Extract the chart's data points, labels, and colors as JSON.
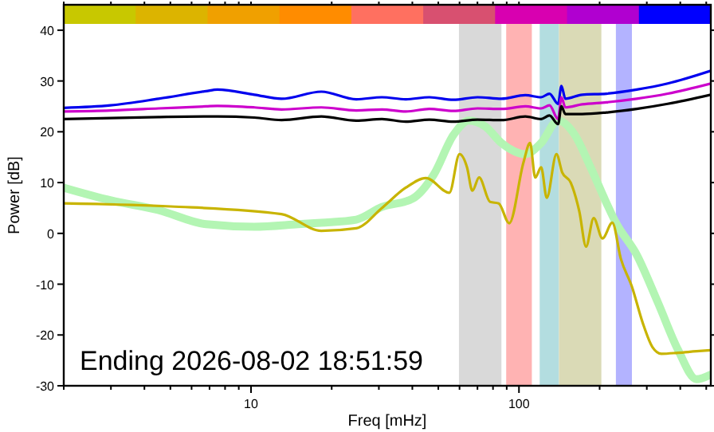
{
  "chart_data": {
    "type": "line",
    "xlabel": "Freq [mHz]",
    "ylabel": "Power [dB]",
    "log": "x",
    "xlim": [
      2,
      520
    ],
    "ylim": [
      -30,
      45
    ],
    "xticks": [
      {
        "value": 2,
        "label": null
      },
      {
        "value": 3,
        "label": null
      },
      {
        "value": 4,
        "label": null
      },
      {
        "value": 5,
        "label": null
      },
      {
        "value": 6,
        "label": null
      },
      {
        "value": 7,
        "label": null
      },
      {
        "value": 8,
        "label": null
      },
      {
        "value": 9,
        "label": null
      },
      10,
      {
        "value": 20,
        "label": null
      },
      {
        "value": 30,
        "label": null
      },
      {
        "value": 40,
        "label": null
      },
      {
        "value": 50,
        "label": null
      },
      {
        "value": 60,
        "label": null
      },
      {
        "value": 70,
        "label": null
      },
      {
        "value": 80,
        "label": null
      },
      {
        "value": 90,
        "label": null
      },
      100,
      {
        "value": 200,
        "label": null
      },
      {
        "value": 300,
        "label": null
      },
      {
        "value": 400,
        "label": null
      },
      {
        "value": 500,
        "label": null
      }
    ],
    "yticks": [
      -30,
      -20,
      -10,
      0,
      10,
      20,
      30,
      40
    ],
    "annotations": [
      "Ending 2026-08-02 18:51:59"
    ],
    "bands": [
      {
        "axis": "x",
        "from": 59.7,
        "to": 86,
        "color": "#d9d9d9"
      },
      {
        "axis": "x",
        "from": 89.6,
        "to": 111.7,
        "color": "#ffb3b3"
      },
      {
        "axis": "x",
        "from": 119.5,
        "to": 141,
        "color": "#b3dde0"
      },
      {
        "axis": "x",
        "from": 141,
        "to": 203,
        "color": "#dadab6"
      },
      {
        "axis": "x",
        "from": 230,
        "to": 264,
        "color": "#b3b3ff"
      }
    ],
    "series": [
      {
        "color": "#b3f5b3",
        "x": [
          2,
          3,
          4.5,
          6.8,
          10.3,
          15,
          18.3,
          24.7,
          30.8,
          40,
          48,
          57,
          65,
          75,
          86,
          105.6,
          121,
          140,
          161,
          185,
          212,
          230,
          275,
          330,
          393,
          460,
          520
        ],
        "values": [
          9,
          6.5,
          4.6,
          1.8,
          1.3,
          1.8,
          2.1,
          2.7,
          5.2,
          6.8,
          11.5,
          19.4,
          22.2,
          21,
          17.8,
          15.6,
          17.8,
          22.2,
          19.5,
          13,
          6,
          2.1,
          -4.2,
          -13.6,
          -23,
          -28.7,
          -27.8
        ]
      },
      {
        "color": "#c8b400",
        "x": [
          2,
          5,
          12.99,
          18.3,
          24.7,
          30.8,
          37.8,
          45,
          55,
          60,
          64,
          67,
          71,
          78,
          84,
          92,
          104,
          110,
          115,
          121,
          127,
          138,
          145,
          156,
          168,
          178,
          190,
          205,
          223,
          240,
          264,
          290,
          315,
          340,
          393,
          460,
          520
        ],
        "values": [
          5.9,
          5.3,
          3.8,
          0.5,
          1,
          5,
          9,
          10.9,
          8,
          15.6,
          13,
          8.4,
          11,
          6.2,
          5.9,
          2,
          14,
          17.8,
          11,
          13,
          7,
          15.6,
          12,
          10,
          4.3,
          -2.6,
          3,
          -1,
          2.1,
          -5,
          -10.5,
          -17.7,
          -22.4,
          -23.7,
          -23.5,
          -23.2,
          -23
        ]
      },
      {
        "color": "#0000ee",
        "x": [
          2,
          2.99,
          4.52,
          6.8,
          7.49,
          10.3,
          12.99,
          18.3,
          24.7,
          30.8,
          37.8,
          46.3,
          56.9,
          70,
          86,
          105.6,
          121,
          130,
          140,
          144,
          149,
          172,
          212,
          275,
          359,
          520
        ],
        "values": [
          24.7,
          25.2,
          26.5,
          28,
          28.3,
          27.3,
          26.5,
          27.9,
          26.4,
          26.8,
          26.4,
          26.8,
          26.3,
          26.8,
          26.5,
          27.2,
          26.8,
          27.5,
          25.5,
          29,
          26.5,
          27.3,
          27.5,
          28.3,
          29.5,
          32
        ]
      },
      {
        "color": "#cc00cc",
        "x": [
          2,
          2.99,
          4.52,
          6.8,
          7.49,
          10.3,
          12.99,
          18.3,
          24.7,
          30.8,
          37.8,
          46.3,
          56.9,
          70,
          86,
          105.6,
          121,
          130,
          140,
          144,
          149,
          172,
          212,
          275,
          359,
          520
        ],
        "values": [
          24,
          24.2,
          24.6,
          25,
          25.1,
          24.8,
          24.4,
          24.8,
          24.2,
          24.4,
          24,
          24.5,
          24.1,
          24.6,
          24.5,
          25,
          24.6,
          25.2,
          22.5,
          26.8,
          24.8,
          25.4,
          25.8,
          26.5,
          27.5,
          29.5
        ]
      },
      {
        "color": "#000000",
        "x": [
          2,
          2.99,
          4.52,
          6.8,
          7.49,
          10.3,
          12.99,
          18.3,
          24.7,
          30.8,
          37.8,
          46.3,
          56.9,
          70,
          86,
          105.6,
          121,
          130,
          140,
          144,
          149,
          172,
          212,
          275,
          359,
          520
        ],
        "values": [
          22.5,
          22.7,
          22.9,
          23,
          23,
          22.8,
          22.3,
          23,
          22.2,
          22.5,
          22,
          22.4,
          22,
          22.4,
          22.3,
          23,
          22.5,
          23.2,
          21.5,
          25,
          23.5,
          23.5,
          23.8,
          24.5,
          25.5,
          27.3
        ]
      }
    ]
  }
}
